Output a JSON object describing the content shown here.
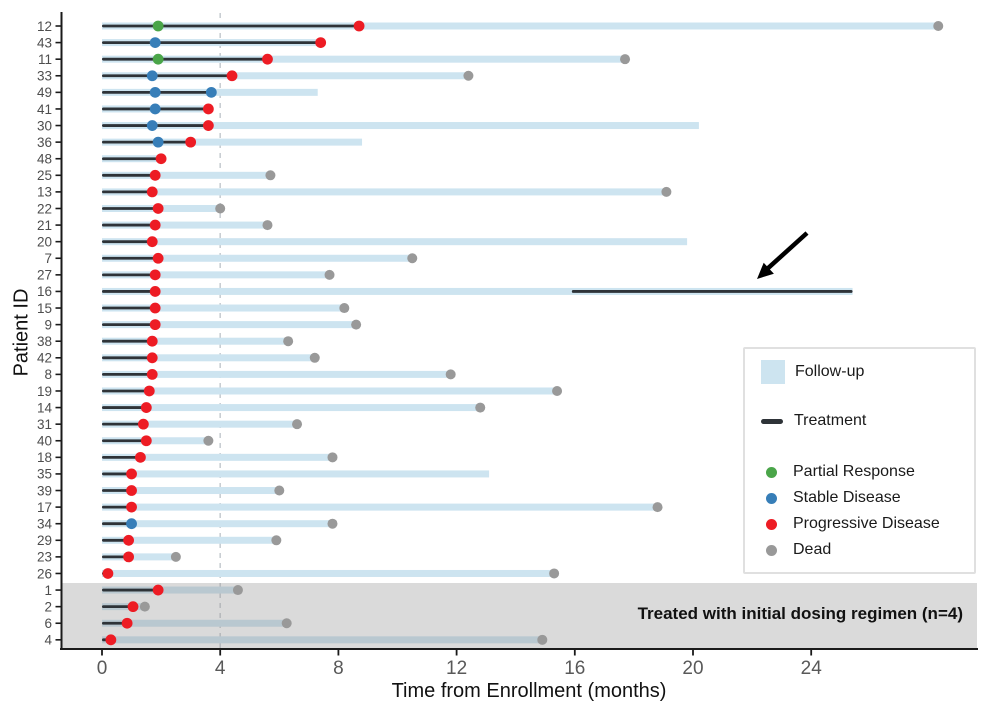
{
  "axes": {
    "x_title": "Time from Enrollment (months)",
    "y_title": "Patient ID"
  },
  "legend": {
    "items": [
      {
        "key": "followup",
        "label": "Follow-up",
        "swatch": "bar"
      },
      {
        "key": "treatment",
        "label": "Treatment",
        "swatch": "line"
      },
      {
        "key": "partial_response",
        "label": "Partial Response",
        "swatch": "dot"
      },
      {
        "key": "stable_disease",
        "label": "Stable Disease",
        "swatch": "dot"
      },
      {
        "key": "progressive_disease",
        "label": "Progressive Disease",
        "swatch": "dot"
      },
      {
        "key": "dead",
        "label": "Dead",
        "swatch": "dot"
      }
    ]
  },
  "band": {
    "label": "Treated with initial dosing regimen (n=4)",
    "patients": [
      "1",
      "2",
      "6",
      "4"
    ]
  },
  "colors": {
    "followup_bar": "#cde4f0",
    "treatment_line": "#2e3338",
    "partial_response": "#4aa549",
    "stable_disease": "#377eb8",
    "progressive_disease": "#ed1c24",
    "dead": "#999999",
    "band_fill": "rgba(150,150,150,0.35)",
    "dashed_line": "#c9ced3",
    "axis_text": "#595959",
    "spine": "#1a1a1a"
  },
  "chart_data": {
    "type": "swimmer",
    "xlabel": "Time from Enrollment (months)",
    "ylabel": "Patient ID",
    "x_ticks": [
      0,
      4,
      8,
      12,
      16,
      20,
      24
    ],
    "xlim": [
      -1.4,
      29.6
    ],
    "reference_line_x": 4,
    "legend_position": "right-middle",
    "arrow_annotation": {
      "target_patient": "16",
      "points_to": "second treatment segment"
    },
    "patients": [
      {
        "id": "12",
        "followup": 28.3,
        "treatment": [
          [
            0,
            8.7
          ]
        ],
        "events": [
          [
            "partial_response",
            1.9
          ],
          [
            "progressive_disease",
            8.7
          ],
          [
            "dead",
            28.3
          ]
        ]
      },
      {
        "id": "43",
        "followup": 7.5,
        "treatment": [
          [
            0,
            7.4
          ]
        ],
        "events": [
          [
            "stable_disease",
            1.8
          ],
          [
            "progressive_disease",
            7.4
          ]
        ]
      },
      {
        "id": "11",
        "followup": 17.7,
        "treatment": [
          [
            0,
            5.6
          ]
        ],
        "events": [
          [
            "partial_response",
            1.9
          ],
          [
            "progressive_disease",
            5.6
          ],
          [
            "dead",
            17.7
          ]
        ]
      },
      {
        "id": "33",
        "followup": 12.4,
        "treatment": [
          [
            0,
            4.4
          ]
        ],
        "events": [
          [
            "stable_disease",
            1.7
          ],
          [
            "progressive_disease",
            4.4
          ],
          [
            "dead",
            12.4
          ]
        ]
      },
      {
        "id": "49",
        "followup": 7.3,
        "treatment": [
          [
            0,
            3.7
          ]
        ],
        "events": [
          [
            "stable_disease",
            1.8
          ],
          [
            "stable_disease",
            3.7
          ]
        ]
      },
      {
        "id": "41",
        "followup": 3.7,
        "treatment": [
          [
            0,
            3.6
          ]
        ],
        "events": [
          [
            "stable_disease",
            1.8
          ],
          [
            "progressive_disease",
            3.6
          ]
        ]
      },
      {
        "id": "30",
        "followup": 20.2,
        "treatment": [
          [
            0,
            3.6
          ]
        ],
        "events": [
          [
            "stable_disease",
            1.7
          ],
          [
            "progressive_disease",
            3.6
          ]
        ]
      },
      {
        "id": "36",
        "followup": 8.8,
        "treatment": [
          [
            0,
            3.0
          ]
        ],
        "events": [
          [
            "stable_disease",
            1.9
          ],
          [
            "progressive_disease",
            3.0
          ]
        ]
      },
      {
        "id": "48",
        "followup": 2.1,
        "treatment": [
          [
            0,
            2.0
          ]
        ],
        "events": [
          [
            "progressive_disease",
            2.0
          ]
        ]
      },
      {
        "id": "25",
        "followup": 5.8,
        "treatment": [
          [
            0,
            1.8
          ]
        ],
        "events": [
          [
            "progressive_disease",
            1.8
          ],
          [
            "dead",
            5.7
          ]
        ]
      },
      {
        "id": "13",
        "followup": 19.1,
        "treatment": [
          [
            0,
            1.7
          ]
        ],
        "events": [
          [
            "progressive_disease",
            1.7
          ],
          [
            "dead",
            19.1
          ]
        ]
      },
      {
        "id": "22",
        "followup": 4.0,
        "treatment": [
          [
            0,
            1.9
          ]
        ],
        "events": [
          [
            "progressive_disease",
            1.9
          ],
          [
            "dead",
            4.0
          ]
        ]
      },
      {
        "id": "21",
        "followup": 5.7,
        "treatment": [
          [
            0,
            1.8
          ]
        ],
        "events": [
          [
            "progressive_disease",
            1.8
          ],
          [
            "dead",
            5.6
          ]
        ]
      },
      {
        "id": "20",
        "followup": 19.8,
        "treatment": [
          [
            0,
            1.7
          ]
        ],
        "events": [
          [
            "progressive_disease",
            1.7
          ]
        ]
      },
      {
        "id": "7",
        "followup": 10.5,
        "treatment": [
          [
            0,
            1.9
          ]
        ],
        "events": [
          [
            "progressive_disease",
            1.9
          ],
          [
            "dead",
            10.5
          ]
        ]
      },
      {
        "id": "27",
        "followup": 7.7,
        "treatment": [
          [
            0,
            1.8
          ]
        ],
        "events": [
          [
            "progressive_disease",
            1.8
          ],
          [
            "dead",
            7.7
          ]
        ]
      },
      {
        "id": "16",
        "followup": 25.4,
        "treatment": [
          [
            0,
            1.8
          ],
          [
            15.9,
            25.4
          ]
        ],
        "events": [
          [
            "progressive_disease",
            1.8
          ]
        ]
      },
      {
        "id": "15",
        "followup": 8.2,
        "treatment": [
          [
            0,
            1.8
          ]
        ],
        "events": [
          [
            "progressive_disease",
            1.8
          ],
          [
            "dead",
            8.2
          ]
        ]
      },
      {
        "id": "9",
        "followup": 8.6,
        "treatment": [
          [
            0,
            1.8
          ]
        ],
        "events": [
          [
            "progressive_disease",
            1.8
          ],
          [
            "dead",
            8.6
          ]
        ]
      },
      {
        "id": "38",
        "followup": 6.3,
        "treatment": [
          [
            0,
            1.7
          ]
        ],
        "events": [
          [
            "progressive_disease",
            1.7
          ],
          [
            "dead",
            6.3
          ]
        ]
      },
      {
        "id": "42",
        "followup": 7.2,
        "treatment": [
          [
            0,
            1.7
          ]
        ],
        "events": [
          [
            "progressive_disease",
            1.7
          ],
          [
            "dead",
            7.2
          ]
        ]
      },
      {
        "id": "8",
        "followup": 11.9,
        "treatment": [
          [
            0,
            1.7
          ]
        ],
        "events": [
          [
            "progressive_disease",
            1.7
          ],
          [
            "dead",
            11.8
          ]
        ]
      },
      {
        "id": "19",
        "followup": 15.4,
        "treatment": [
          [
            0,
            1.6
          ]
        ],
        "events": [
          [
            "progressive_disease",
            1.6
          ],
          [
            "dead",
            15.4
          ]
        ]
      },
      {
        "id": "14",
        "followup": 12.8,
        "treatment": [
          [
            0,
            1.5
          ]
        ],
        "events": [
          [
            "progressive_disease",
            1.5
          ],
          [
            "dead",
            12.8
          ]
        ]
      },
      {
        "id": "31",
        "followup": 6.6,
        "treatment": [
          [
            0,
            1.4
          ]
        ],
        "events": [
          [
            "progressive_disease",
            1.4
          ],
          [
            "dead",
            6.6
          ]
        ]
      },
      {
        "id": "40",
        "followup": 3.7,
        "treatment": [
          [
            0,
            1.5
          ]
        ],
        "events": [
          [
            "progressive_disease",
            1.5
          ],
          [
            "dead",
            3.6
          ]
        ]
      },
      {
        "id": "18",
        "followup": 7.9,
        "treatment": [
          [
            0,
            1.3
          ]
        ],
        "events": [
          [
            "progressive_disease",
            1.3
          ],
          [
            "dead",
            7.8
          ]
        ]
      },
      {
        "id": "35",
        "followup": 13.1,
        "treatment": [
          [
            0,
            1.0
          ]
        ],
        "events": [
          [
            "progressive_disease",
            1.0
          ]
        ]
      },
      {
        "id": "39",
        "followup": 6.0,
        "treatment": [
          [
            0,
            1.0
          ]
        ],
        "events": [
          [
            "progressive_disease",
            1.0
          ],
          [
            "dead",
            6.0
          ]
        ]
      },
      {
        "id": "17",
        "followup": 18.9,
        "treatment": [
          [
            0,
            1.0
          ]
        ],
        "events": [
          [
            "progressive_disease",
            1.0
          ],
          [
            "dead",
            18.8
          ]
        ]
      },
      {
        "id": "34",
        "followup": 7.8,
        "treatment": [
          [
            0,
            1.0
          ]
        ],
        "events": [
          [
            "stable_disease",
            1.0
          ],
          [
            "dead",
            7.8
          ]
        ]
      },
      {
        "id": "29",
        "followup": 5.9,
        "treatment": [
          [
            0,
            0.9
          ]
        ],
        "events": [
          [
            "progressive_disease",
            0.9
          ],
          [
            "dead",
            5.9
          ]
        ]
      },
      {
        "id": "23",
        "followup": 2.6,
        "treatment": [
          [
            0,
            0.9
          ]
        ],
        "events": [
          [
            "progressive_disease",
            0.9
          ],
          [
            "dead",
            2.5
          ]
        ]
      },
      {
        "id": "26",
        "followup": 15.3,
        "treatment": [
          [
            0,
            0.2
          ]
        ],
        "events": [
          [
            "progressive_disease",
            0.2
          ],
          [
            "dead",
            15.3
          ]
        ]
      },
      {
        "id": "1",
        "followup": 4.7,
        "treatment": [
          [
            0,
            1.9
          ]
        ],
        "events": [
          [
            "progressive_disease",
            1.9
          ],
          [
            "dead",
            4.6
          ]
        ]
      },
      {
        "id": "2",
        "followup": 1.5,
        "treatment": [
          [
            0,
            1.0
          ]
        ],
        "events": [
          [
            "progressive_disease",
            1.05
          ],
          [
            "dead",
            1.45
          ]
        ]
      },
      {
        "id": "6",
        "followup": 6.3,
        "treatment": [
          [
            0,
            0.9
          ]
        ],
        "events": [
          [
            "progressive_disease",
            0.85
          ],
          [
            "dead",
            6.25
          ]
        ]
      },
      {
        "id": "4",
        "followup": 14.9,
        "treatment": [
          [
            0,
            0.3
          ]
        ],
        "events": [
          [
            "progressive_disease",
            0.3
          ],
          [
            "dead",
            14.9
          ]
        ]
      }
    ]
  }
}
